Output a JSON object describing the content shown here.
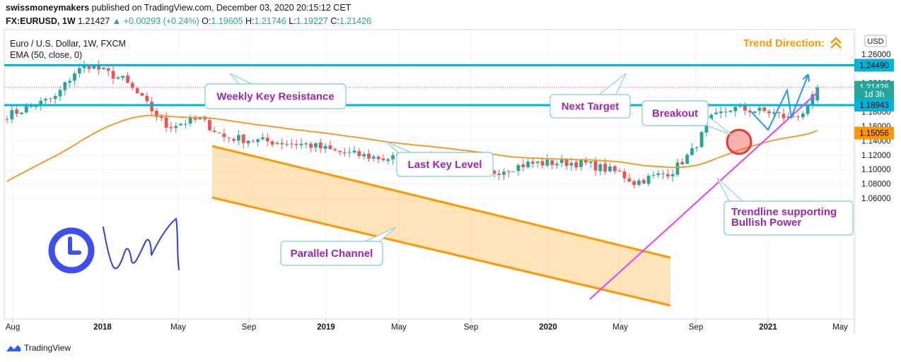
{
  "header": {
    "publisher": "swissmoneymakers",
    "published_text": "published on TradingView.com, December 03, 2020 20:15:12 CET",
    "symbol": "FX:EURUSD, 1W",
    "last": "1.21427",
    "change": "+0.00293 (+0.24%)",
    "o_label": "O:",
    "o_value": "1.19605",
    "h_label": "H:",
    "h_value": "1.21746",
    "l_label": "L:",
    "l_value": "1.19227",
    "c_label": "C:",
    "c_value": "1.21426"
  },
  "legend": {
    "instrument": "Euro / U.S. Dollar, 1W, FXCM",
    "indicator": "EMA (50, close, 0)"
  },
  "trend_direction": "Trend Direction:",
  "currency": "USD",
  "footer_brand": "TradingView",
  "annotations": {
    "weekly_key_resistance": "Weekly Key Resistance",
    "last_key_level": "Last Key Level",
    "next_target": "Next Target",
    "breakout": "Breakout",
    "parallel_channel": "Parallel Channel",
    "trendline_1": "Trendline supporting",
    "trendline_2": "Bullish Power"
  },
  "colors": {
    "up": "#26a69a",
    "down": "#ef5350",
    "ema": "#f7931a",
    "key_level": "#00b4d8",
    "channel": "#ff9800",
    "trendline": "#e040fb",
    "annotation_text": "#9c27b0",
    "trend_text": "#ff9800",
    "projection": "#2196f3"
  },
  "chart_data": {
    "type": "candlestick",
    "symbol": "EURUSD",
    "timeframe": "1W",
    "x_ticks": [
      "Aug",
      "2018",
      "May",
      "Sep",
      "2019",
      "May",
      "Sep",
      "2020",
      "May",
      "Sep",
      "2021",
      "May"
    ],
    "y_ticks": [
      "1.26000",
      "1.24000",
      "1.22000",
      "1.20000",
      "1.18000",
      "1.16000",
      "1.14000",
      "1.12000",
      "1.10000",
      "1.08000",
      "1.06000"
    ],
    "y_tick_values": [
      1.26,
      1.24,
      1.22,
      1.2,
      1.18,
      1.16,
      1.14,
      1.12,
      1.1,
      1.08,
      1.06
    ],
    "ylim": [
      1.045,
      1.268
    ],
    "price_tags": [
      {
        "label": "1.24490",
        "value": 1.2449,
        "bg": "#00b4d8",
        "fg": "#000000"
      },
      {
        "label": "1.21426",
        "value": 1.21426,
        "bg": "#26a69a",
        "fg": "#ffffff"
      },
      {
        "label": "1d 3h",
        "value": 1.2045,
        "bg": "#26a69a",
        "fg": "#ffffff"
      },
      {
        "label": "1.18943",
        "value": 1.18943,
        "bg": "#00b4d8",
        "fg": "#000000"
      },
      {
        "label": "1.15056",
        "value": 1.15056,
        "bg": "#ff9800",
        "fg": "#000000"
      }
    ],
    "horizontal_levels": [
      {
        "name": "Weekly Key Resistance",
        "value": 1.2449
      },
      {
        "name": "Last Key Level",
        "value": 1.18943
      }
    ],
    "anchors": [
      [
        0,
        1.175
      ],
      [
        10,
        1.2
      ],
      [
        14,
        1.235
      ],
      [
        17,
        1.245
      ],
      [
        24,
        1.225
      ],
      [
        27,
        1.205
      ],
      [
        33,
        1.16
      ],
      [
        40,
        1.17
      ],
      [
        45,
        1.145
      ],
      [
        52,
        1.14
      ],
      [
        62,
        1.135
      ],
      [
        68,
        1.125
      ],
      [
        78,
        1.115
      ],
      [
        86,
        1.12
      ],
      [
        95,
        1.105
      ],
      [
        100,
        1.095
      ],
      [
        108,
        1.108
      ],
      [
        115,
        1.11
      ],
      [
        120,
        1.108
      ],
      [
        127,
        1.095
      ],
      [
        130,
        1.082
      ],
      [
        134,
        1.09
      ],
      [
        138,
        1.098
      ],
      [
        142,
        1.125
      ],
      [
        146,
        1.17
      ],
      [
        150,
        1.185
      ],
      [
        158,
        1.18
      ],
      [
        162,
        1.171
      ],
      [
        166,
        1.183
      ],
      [
        168,
        1.214
      ]
    ],
    "candle_count": 169
  }
}
